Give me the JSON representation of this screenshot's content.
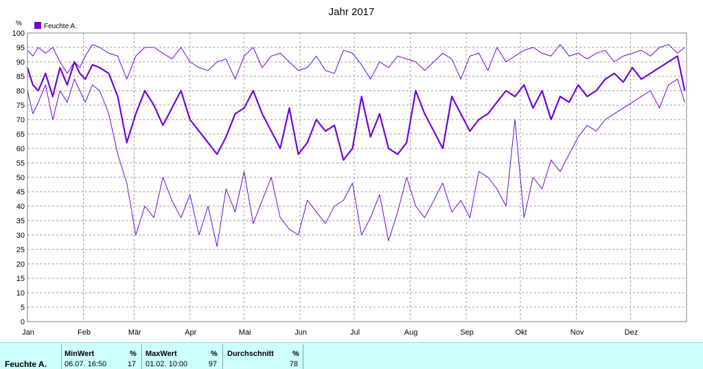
{
  "chart_data": {
    "type": "line",
    "title": "Jahr 2017",
    "ylabel": "%",
    "ylim": [
      0,
      100
    ],
    "yticks": [
      0,
      5,
      10,
      15,
      20,
      25,
      30,
      35,
      40,
      45,
      50,
      55,
      60,
      65,
      70,
      75,
      80,
      85,
      90,
      95,
      100
    ],
    "xlim": [
      0,
      365
    ],
    "month_labels": [
      "Jan",
      "Feb",
      "Mär",
      "Apr",
      "Mai",
      "Jun",
      "Jul",
      "Aug",
      "Sep",
      "Okt",
      "Nov",
      "Dez"
    ],
    "month_starts": [
      0,
      31,
      59,
      90,
      120,
      151,
      181,
      212,
      243,
      273,
      304,
      334
    ],
    "grid": true,
    "legend_position": "top-left",
    "legend": [
      {
        "name": "Feuchte A.",
        "color": "#7000e0"
      }
    ],
    "series": [
      {
        "name": "Feuchte A.",
        "style": "daily-max",
        "color": "#7000e0",
        "x": [
          0,
          3,
          6,
          10,
          14,
          18,
          22,
          26,
          29,
          32,
          36,
          40,
          45,
          50,
          55,
          60,
          65,
          70,
          75,
          80,
          85,
          90,
          95,
          100,
          105,
          110,
          115,
          120,
          125,
          130,
          135,
          140,
          145,
          150,
          155,
          160,
          165,
          170,
          175,
          180,
          185,
          190,
          195,
          200,
          205,
          210,
          215,
          220,
          225,
          230,
          235,
          240,
          245,
          250,
          255,
          260,
          265,
          270,
          275,
          280,
          285,
          290,
          295,
          300,
          305,
          310,
          315,
          320,
          325,
          330,
          335,
          340,
          345,
          350,
          355,
          360,
          364
        ],
        "values": [
          94,
          92,
          95,
          93,
          95,
          90,
          86,
          90,
          88,
          92,
          96,
          95,
          93,
          92,
          84,
          92,
          95,
          95,
          93,
          91,
          95,
          90,
          88,
          87,
          90,
          91,
          84,
          92,
          95,
          88,
          92,
          93,
          90,
          87,
          88,
          92,
          87,
          86,
          94,
          93,
          89,
          84,
          90,
          88,
          92,
          91,
          90,
          87,
          90,
          93,
          91,
          84,
          92,
          93,
          87,
          95,
          90,
          92,
          94,
          95,
          93,
          92,
          96,
          92,
          93,
          91,
          93,
          94,
          90,
          92,
          93,
          94,
          92,
          95,
          96,
          93,
          95
        ]
      },
      {
        "name": "Feuchte A.",
        "style": "daily-mean",
        "color": "#7000e0",
        "x": [
          0,
          3,
          6,
          10,
          14,
          18,
          22,
          26,
          29,
          32,
          36,
          40,
          45,
          50,
          55,
          60,
          65,
          70,
          75,
          80,
          85,
          90,
          95,
          100,
          105,
          110,
          115,
          120,
          125,
          130,
          135,
          140,
          145,
          150,
          155,
          160,
          165,
          170,
          175,
          180,
          185,
          190,
          195,
          200,
          205,
          210,
          215,
          220,
          225,
          230,
          235,
          240,
          245,
          250,
          255,
          260,
          265,
          270,
          275,
          280,
          285,
          290,
          295,
          300,
          305,
          310,
          315,
          320,
          325,
          330,
          335,
          340,
          345,
          350,
          355,
          360,
          364
        ],
        "values": [
          88,
          82,
          80,
          86,
          78,
          88,
          82,
          90,
          86,
          84,
          89,
          88,
          86,
          78,
          62,
          72,
          80,
          75,
          68,
          74,
          80,
          70,
          66,
          62,
          58,
          64,
          72,
          74,
          80,
          72,
          66,
          60,
          74,
          58,
          62,
          70,
          66,
          68,
          56,
          60,
          78,
          64,
          72,
          60,
          58,
          62,
          80,
          72,
          66,
          60,
          78,
          72,
          66,
          70,
          72,
          76,
          80,
          78,
          82,
          74,
          80,
          70,
          78,
          76,
          82,
          78,
          80,
          84,
          86,
          83,
          88,
          84,
          86,
          88,
          90,
          92,
          80
        ]
      },
      {
        "name": "Feuchte A.",
        "style": "daily-min",
        "color": "#7000e0",
        "x": [
          0,
          3,
          6,
          10,
          14,
          18,
          22,
          26,
          29,
          32,
          36,
          40,
          45,
          50,
          55,
          60,
          65,
          70,
          75,
          80,
          85,
          90,
          95,
          100,
          105,
          110,
          115,
          120,
          125,
          130,
          135,
          140,
          145,
          150,
          155,
          160,
          165,
          170,
          175,
          180,
          185,
          190,
          195,
          200,
          205,
          210,
          215,
          220,
          225,
          230,
          235,
          240,
          245,
          250,
          255,
          260,
          265,
          270,
          275,
          280,
          285,
          290,
          295,
          300,
          305,
          310,
          315,
          320,
          325,
          330,
          335,
          340,
          345,
          350,
          355,
          360,
          364
        ],
        "values": [
          80,
          72,
          76,
          82,
          70,
          80,
          76,
          84,
          80,
          76,
          82,
          80,
          72,
          58,
          48,
          30,
          40,
          36,
          50,
          42,
          36,
          44,
          30,
          40,
          26,
          46,
          38,
          52,
          34,
          42,
          50,
          36,
          32,
          30,
          42,
          38,
          34,
          40,
          42,
          48,
          30,
          36,
          44,
          28,
          38,
          50,
          40,
          36,
          42,
          48,
          38,
          42,
          36,
          52,
          50,
          46,
          40,
          70,
          36,
          50,
          46,
          56,
          52,
          58,
          64,
          68,
          66,
          70,
          72,
          74,
          76,
          78,
          80,
          74,
          82,
          84,
          76
        ]
      }
    ]
  },
  "stats": {
    "series_name": "Feuchte A.",
    "min": {
      "label": "MinWert",
      "unit": "%",
      "time": "06.07.  16:50",
      "value": "17"
    },
    "max": {
      "label": "MaxWert",
      "unit": "%",
      "time": "01.02.  10:00",
      "value": "97"
    },
    "avg": {
      "label": "Durchschnitt",
      "unit": "%",
      "value": "78"
    }
  }
}
